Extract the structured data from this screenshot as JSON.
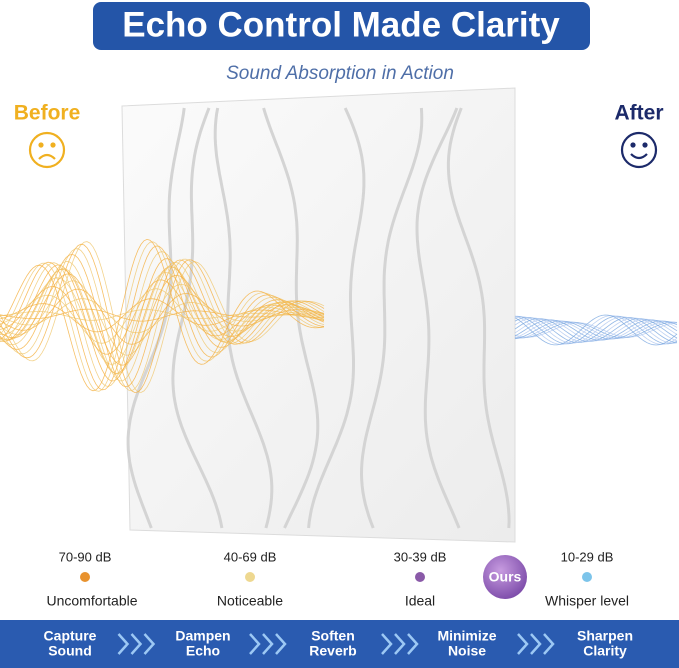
{
  "header": {
    "title": "Echo Control Made Clarity",
    "subtitle": "Sound Absorption in Action"
  },
  "before": "Before",
  "after": "After",
  "scale": {
    "levels": [
      {
        "db": "70-90 dB",
        "label": "Uncomfortable"
      },
      {
        "db": "40-69 dB",
        "label": "Noticeable"
      },
      {
        "db": "30-39 dB",
        "label": "Ideal"
      },
      {
        "db": "10-29 dB",
        "label": "Whisper level"
      }
    ],
    "badge": "Ours"
  },
  "steps": [
    [
      "Capture",
      "Sound"
    ],
    [
      "Dampen",
      "Echo"
    ],
    [
      "Soften",
      "Reverb"
    ],
    [
      "Minimize",
      "Noise"
    ],
    [
      "Sharpen",
      "Clarity"
    ]
  ]
}
